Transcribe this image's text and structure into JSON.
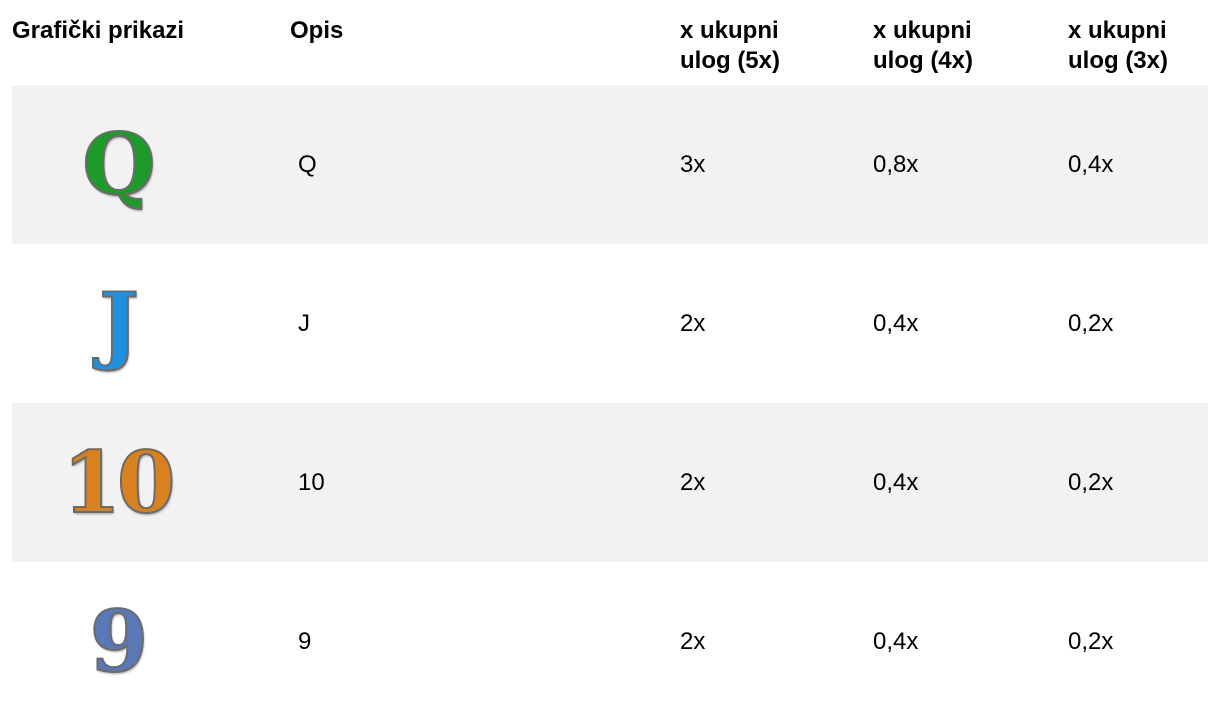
{
  "header": {
    "columns": [
      "Grafički prikazi",
      "Opis",
      "x ukupni ulog (5x)",
      "x ukupni ulog (4x)",
      "x ukupni ulog (3x)"
    ]
  },
  "rows": [
    {
      "description": "Q",
      "values": [
        "3x",
        "0,8x",
        "0,4x"
      ]
    },
    {
      "description": "J",
      "values": [
        "2x",
        "0,4x",
        "0,2x"
      ]
    },
    {
      "description": "10",
      "values": [
        "2x",
        "0,4x",
        "0,2x"
      ]
    },
    {
      "description": "9",
      "values": [
        "2x",
        "0,4x",
        "0,2x"
      ]
    }
  ]
}
